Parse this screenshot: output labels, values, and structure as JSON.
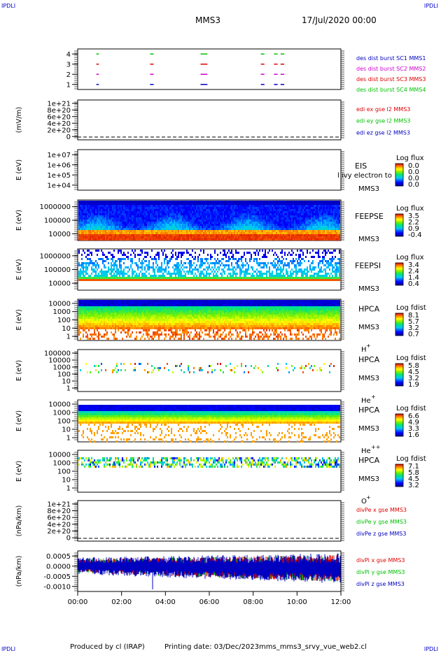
{
  "header": {
    "left_logo": "IPDLI",
    "right_logo": "IPDLI",
    "mission": "MMS3",
    "date_time": "17/Jul/2020 00:00"
  },
  "footer": {
    "produced_by": "Produced by cl (IRAP)",
    "printing_date": "Printing date: 03/Dec/2023",
    "script_name": "mms_mms3_srvy_vue_web2.cl",
    "bottom_left_logo": "IPDLI",
    "bottom_right_logo": "IPDLI"
  },
  "colors": {
    "red": "#e00000",
    "green": "#00c000",
    "blue": "#0000c0",
    "magenta": "#d000d0",
    "navy": "#1010a0"
  },
  "chart_data": [
    {
      "type": "line",
      "id": "burst",
      "ylabel": "",
      "yticks": [
        "4",
        "3",
        "2",
        "1"
      ],
      "ylim": [
        0.5,
        4.5
      ],
      "xlim": [
        0,
        12
      ],
      "series": [
        {
          "name": "des dist burst SC1 MMS1",
          "color": "#0000c0",
          "y": 1,
          "segments": [
            [
              0.85,
              0.9
            ],
            [
              3.3,
              3.4
            ],
            [
              5.6,
              5.85
            ],
            [
              8.35,
              8.45
            ],
            [
              8.95,
              9.05
            ],
            [
              9.25,
              9.35
            ]
          ]
        },
        {
          "name": "des dist burst SC2 MMS2",
          "color": "#d000d0",
          "y": 2,
          "segments": [
            [
              0.85,
              0.9
            ],
            [
              3.3,
              3.4
            ],
            [
              5.6,
              5.85
            ],
            [
              8.35,
              8.45
            ],
            [
              8.95,
              9.05
            ],
            [
              9.25,
              9.35
            ]
          ]
        },
        {
          "name": "des dist burst SC3 MMS3",
          "color": "#e00000",
          "y": 3,
          "segments": [
            [
              0.85,
              0.9
            ],
            [
              3.3,
              3.4
            ],
            [
              5.6,
              5.85
            ],
            [
              8.35,
              8.45
            ],
            [
              8.95,
              9.05
            ],
            [
              9.25,
              9.35
            ]
          ]
        },
        {
          "name": "des dist burst SC4 MMS4",
          "color": "#00c000",
          "y": 4,
          "segments": [
            [
              0.85,
              0.9
            ],
            [
              3.3,
              3.4
            ],
            [
              5.6,
              5.85
            ],
            [
              8.35,
              8.45
            ],
            [
              8.95,
              9.05
            ],
            [
              9.25,
              9.35
            ]
          ]
        }
      ]
    },
    {
      "type": "line",
      "id": "edi",
      "ylabel": "(mV/m)",
      "yticks": [
        "1e+21",
        "8e+20",
        "6e+20",
        "4e+20",
        "2e+20",
        "0"
      ],
      "ylim": [
        0,
        1e+21
      ],
      "xlim": [
        0,
        12
      ],
      "zero_line": true,
      "series": [
        {
          "name": "edi ex gse l2 MMS3",
          "color": "#e00000"
        },
        {
          "name": "edi ey gse l2 MMS3",
          "color": "#00c000"
        },
        {
          "name": "edi ez gse l2 MMS3",
          "color": "#0000c0"
        }
      ]
    },
    {
      "type": "heatmap",
      "id": "eis",
      "ylabel": "E (eV)",
      "yticks": [
        "1e+07",
        "1e+06",
        "1e+05",
        "1e+04"
      ],
      "ylim": [
        10000,
        10000000
      ],
      "instrument": "EIS",
      "overlay_text": "l ivy electron to",
      "spacecraft": "MMS3",
      "colorbar": {
        "label": "Log flux",
        "ticks": [
          "0.0",
          "0.0",
          "0.0",
          "0.0"
        ]
      }
    },
    {
      "type": "heatmap",
      "id": "feeps_e",
      "ylabel": "E (eV)",
      "yticks": [
        "1000000",
        "100000",
        "10000"
      ],
      "ylim": [
        10000,
        1000000
      ],
      "instrument": "FEEPSE",
      "spacecraft": "MMS3",
      "colorbar": {
        "label": "Log flux",
        "ticks": [
          "3.5",
          "2.2",
          "0.9",
          "-0.4"
        ]
      }
    },
    {
      "type": "heatmap",
      "id": "feeps_i",
      "ylabel": "E (eV)",
      "yticks": [
        "1000000",
        "100000",
        "10000"
      ],
      "ylim": [
        10000,
        1000000
      ],
      "instrument": "FEEPSI",
      "spacecraft": "MMS3",
      "colorbar": {
        "label": "Log flux",
        "ticks": [
          "3.4",
          "2.4",
          "1.4",
          "0.4"
        ]
      }
    },
    {
      "type": "heatmap",
      "id": "hpca_h",
      "ylabel": "E (eV)",
      "yticks": [
        "10000",
        "1000",
        "100",
        "10",
        "1"
      ],
      "ylim": [
        1,
        40000
      ],
      "instrument": "HPCA",
      "spacecraft": "MMS3",
      "species": "H",
      "species_sup": "+",
      "colorbar": {
        "label": "Log fdist",
        "ticks": [
          "8.1",
          "5.7",
          "3.2",
          "0.7"
        ]
      }
    },
    {
      "type": "heatmap",
      "id": "hpca_he",
      "ylabel": "E (eV)",
      "yticks": [
        "100000",
        "10000",
        "1000",
        "100",
        "10",
        "1"
      ],
      "ylim": [
        1,
        100000
      ],
      "instrument": "HPCA",
      "spacecraft": "MMS3",
      "species": "He",
      "species_sup": "+",
      "colorbar": {
        "label": "Log fdist",
        "ticks": [
          "5.8",
          "4.5",
          "3.2",
          "1.9"
        ]
      }
    },
    {
      "type": "heatmap",
      "id": "hpca_hepp",
      "ylabel": "E (eV)",
      "yticks": [
        "10000",
        "1000",
        "100",
        "10",
        "1"
      ],
      "ylim": [
        1,
        15000
      ],
      "instrument": "HPCA",
      "spacecraft": "MMS3",
      "species": "He",
      "species_sup": "++",
      "colorbar": {
        "label": "Log fdist",
        "ticks": [
          "6.6",
          "4.9",
          "3.3",
          "1.6"
        ]
      }
    },
    {
      "type": "heatmap",
      "id": "hpca_o",
      "ylabel": "E (eV)",
      "yticks": [
        "10000",
        "1000",
        "100",
        "10",
        "1"
      ],
      "ylim": [
        1,
        20000
      ],
      "instrument": "HPCA",
      "spacecraft": "MMS3",
      "species": "O",
      "species_sup": "+",
      "colorbar": {
        "label": "Log fdist",
        "ticks": [
          "7.1",
          "5.8",
          "4.5",
          "3.2"
        ]
      }
    },
    {
      "type": "line",
      "id": "divpe",
      "ylabel": "(nPa/km)",
      "yticks": [
        "1e+21",
        "8e+20",
        "6e+20",
        "4e+20",
        "2e+20",
        "0"
      ],
      "ylim": [
        0,
        1e+21
      ],
      "xlim": [
        0,
        12
      ],
      "zero_line": true,
      "series": [
        {
          "name": "divPe x gse MMS3",
          "color": "#e00000"
        },
        {
          "name": "divPe y gse MMS3",
          "color": "#00c000"
        },
        {
          "name": "divPe z gse MMS3",
          "color": "#0000c0"
        }
      ]
    },
    {
      "type": "line",
      "id": "divpi",
      "ylabel": "(nPa/km)",
      "yticks": [
        "0.0005",
        "0.0000",
        "-0.0005",
        "-0.0010"
      ],
      "ylim": [
        -0.0012,
        0.0007
      ],
      "xlim": [
        0,
        12
      ],
      "series": [
        {
          "name": "divPi x gse MMS3",
          "color": "#e00000"
        },
        {
          "name": "divPi y gse MMS3",
          "color": "#00c000"
        },
        {
          "name": "divPi z gse MMS3",
          "color": "#0000c0"
        }
      ]
    }
  ],
  "x_axis": {
    "ticks": [
      "00:00",
      "02:00",
      "04:00",
      "06:00",
      "08:00",
      "10:00",
      "12:00"
    ],
    "range_hours": [
      0,
      12
    ]
  }
}
